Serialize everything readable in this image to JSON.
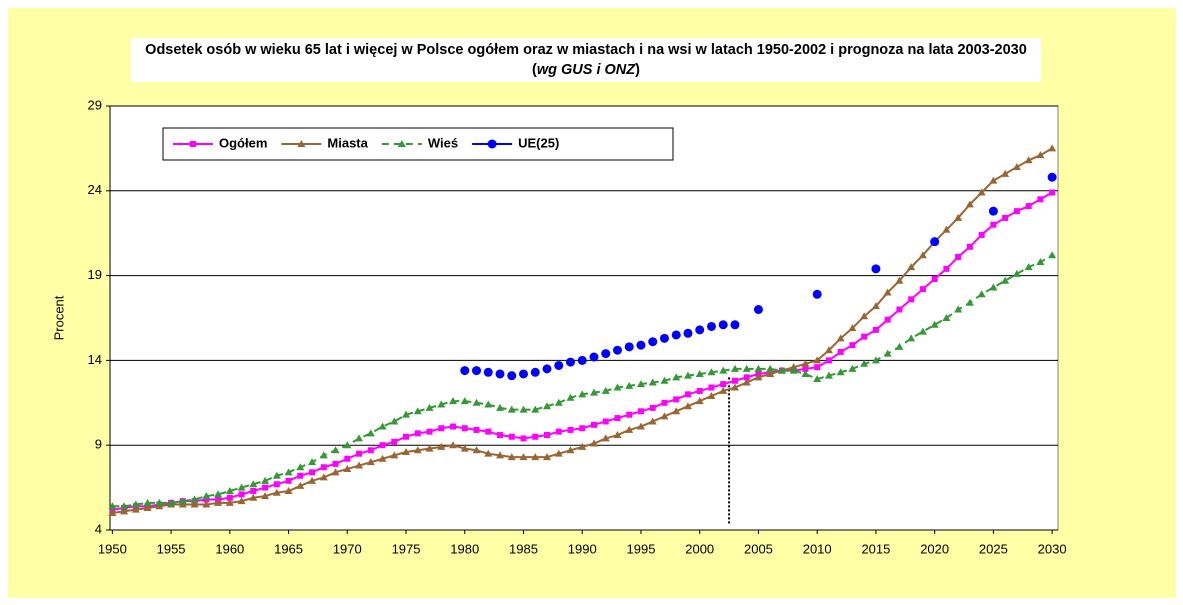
{
  "chart_data": {
    "type": "line",
    "title": "Odsetek osób w wieku 65 lat i więcej w Polsce ogółem oraz w miastach i na wsi w latach 1950-2002 i prognoza na lata 2003-2030 (",
    "title_italic": "wg GUS i ONZ",
    "title_end": ")",
    "ylabel": "Procent",
    "x": [
      1950,
      1951,
      1952,
      1953,
      1954,
      1955,
      1956,
      1957,
      1958,
      1959,
      1960,
      1961,
      1962,
      1963,
      1964,
      1965,
      1966,
      1967,
      1968,
      1969,
      1970,
      1971,
      1972,
      1973,
      1974,
      1975,
      1976,
      1977,
      1978,
      1979,
      1980,
      1981,
      1982,
      1983,
      1984,
      1985,
      1986,
      1987,
      1988,
      1989,
      1990,
      1991,
      1992,
      1993,
      1994,
      1995,
      1996,
      1997,
      1998,
      1999,
      2000,
      2001,
      2002,
      2003,
      2004,
      2005,
      2006,
      2007,
      2008,
      2009,
      2010,
      2011,
      2012,
      2013,
      2014,
      2015,
      2016,
      2017,
      2018,
      2019,
      2020,
      2021,
      2022,
      2023,
      2024,
      2025,
      2026,
      2027,
      2028,
      2029,
      2030
    ],
    "series": [
      {
        "name": "Ogółem",
        "color": "#ff00ff",
        "marker": "square",
        "dash": false,
        "values": [
          5.2,
          5.3,
          5.4,
          5.4,
          5.5,
          5.6,
          5.7,
          5.7,
          5.8,
          5.8,
          5.9,
          6.1,
          6.3,
          6.5,
          6.7,
          6.9,
          7.2,
          7.4,
          7.7,
          7.9,
          8.2,
          8.5,
          8.7,
          9.0,
          9.2,
          9.5,
          9.7,
          9.8,
          10.0,
          10.1,
          10.0,
          9.9,
          9.8,
          9.6,
          9.5,
          9.4,
          9.5,
          9.6,
          9.8,
          9.9,
          10.0,
          10.2,
          10.4,
          10.6,
          10.8,
          11.0,
          11.2,
          11.5,
          11.7,
          12.0,
          12.2,
          12.4,
          12.6,
          12.8,
          13.0,
          13.2,
          13.3,
          13.4,
          13.4,
          13.5,
          13.6,
          14.0,
          14.5,
          14.9,
          15.4,
          15.8,
          16.4,
          17.0,
          17.6,
          18.2,
          18.8,
          19.4,
          20.1,
          20.7,
          21.4,
          22.0,
          22.4,
          22.8,
          23.1,
          23.5,
          23.9
        ]
      },
      {
        "name": "Miasta",
        "color": "#996633",
        "marker": "triangle",
        "dash": false,
        "values": [
          5.0,
          5.1,
          5.2,
          5.3,
          5.4,
          5.5,
          5.5,
          5.5,
          5.5,
          5.6,
          5.6,
          5.7,
          5.9,
          6.0,
          6.2,
          6.3,
          6.6,
          6.9,
          7.1,
          7.4,
          7.6,
          7.8,
          8.0,
          8.2,
          8.4,
          8.6,
          8.7,
          8.8,
          8.9,
          9.0,
          8.8,
          8.7,
          8.5,
          8.4,
          8.3,
          8.3,
          8.3,
          8.3,
          8.5,
          8.7,
          8.9,
          9.1,
          9.4,
          9.6,
          9.9,
          10.1,
          10.4,
          10.7,
          11.0,
          11.3,
          11.6,
          11.9,
          12.2,
          12.4,
          12.7,
          13.0,
          13.2,
          13.4,
          13.6,
          13.8,
          14.0,
          14.6,
          15.3,
          15.9,
          16.6,
          17.2,
          18.0,
          18.7,
          19.5,
          20.2,
          21.0,
          21.7,
          22.4,
          23.2,
          23.9,
          24.6,
          25.0,
          25.4,
          25.8,
          26.1,
          26.5
        ]
      },
      {
        "name": "Wieś",
        "color": "#339933",
        "marker": "triangle",
        "dash": true,
        "values": [
          5.4,
          5.4,
          5.5,
          5.6,
          5.6,
          5.6,
          5.7,
          5.8,
          6.0,
          6.1,
          6.3,
          6.5,
          6.7,
          6.9,
          7.2,
          7.4,
          7.7,
          8.0,
          8.4,
          8.7,
          9.0,
          9.4,
          9.7,
          10.1,
          10.4,
          10.8,
          11.0,
          11.2,
          11.4,
          11.6,
          11.6,
          11.5,
          11.4,
          11.2,
          11.1,
          11.1,
          11.1,
          11.3,
          11.5,
          11.8,
          12.0,
          12.1,
          12.2,
          12.4,
          12.5,
          12.6,
          12.7,
          12.8,
          13.0,
          13.1,
          13.2,
          13.3,
          13.4,
          13.5,
          13.5,
          13.5,
          13.5,
          13.4,
          13.4,
          13.2,
          12.9,
          13.1,
          13.3,
          13.5,
          13.8,
          14.0,
          14.4,
          14.8,
          15.3,
          15.7,
          16.1,
          16.5,
          17.0,
          17.4,
          17.9,
          18.3,
          18.7,
          19.1,
          19.5,
          19.8,
          20.2
        ]
      },
      {
        "name": "UE(25)",
        "color": "#0000ff",
        "marker": "circle",
        "dash": false,
        "line": false,
        "values": [
          null,
          null,
          null,
          null,
          null,
          null,
          null,
          null,
          null,
          null,
          null,
          null,
          null,
          null,
          null,
          null,
          null,
          null,
          null,
          null,
          null,
          null,
          null,
          null,
          null,
          null,
          null,
          null,
          null,
          null,
          13.4,
          13.4,
          13.3,
          13.2,
          13.1,
          13.2,
          13.3,
          13.5,
          13.7,
          13.9,
          14.0,
          14.2,
          14.4,
          14.6,
          14.8,
          14.9,
          15.1,
          15.3,
          15.5,
          15.6,
          15.8,
          16.0,
          16.1,
          16.1,
          null,
          17.0,
          null,
          null,
          null,
          null,
          17.9,
          null,
          null,
          null,
          null,
          19.4,
          null,
          null,
          null,
          null,
          21.0,
          null,
          null,
          null,
          null,
          22.8,
          null,
          null,
          null,
          null,
          24.8
        ]
      }
    ],
    "xlim": [
      1949.8,
      2030.5
    ],
    "xticks": [
      1950,
      1955,
      1960,
      1965,
      1970,
      1975,
      1980,
      1985,
      1990,
      1995,
      2000,
      2005,
      2010,
      2015,
      2020,
      2025,
      2030
    ],
    "ylim": [
      4,
      29
    ],
    "yticks": [
      4,
      9,
      14,
      19,
      24,
      29
    ],
    "grid": true,
    "vline": 2002.5,
    "legend": "top-left"
  }
}
